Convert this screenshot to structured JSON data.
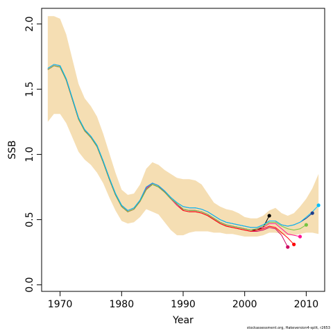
{
  "chart_data": {
    "type": "line",
    "xlabel": "Year",
    "ylabel": "SSB",
    "xlim": [
      1967,
      2013
    ],
    "ylim": [
      -0.05,
      2.12
    ],
    "xticks": [
      1970,
      1980,
      1990,
      2000,
      2010
    ],
    "yticks": [
      0.0,
      0.5,
      1.0,
      1.5,
      2.0
    ],
    "xtick_labels": [
      "1970",
      "1980",
      "1990",
      "2000",
      "2010"
    ],
    "ytick_labels": [
      "0.0",
      "0.5",
      "1.0",
      "1.5",
      "2.0"
    ],
    "grid": false,
    "band": {
      "color": "#F5DEB3",
      "x": [
        1968,
        1969,
        1970,
        1971,
        1972,
        1973,
        1974,
        1975,
        1976,
        1977,
        1978,
        1979,
        1980,
        1981,
        1982,
        1983,
        1984,
        1985,
        1986,
        1987,
        1988,
        1989,
        1990,
        1991,
        1992,
        1993,
        1994,
        1995,
        1996,
        1997,
        1998,
        1999,
        2000,
        2001,
        2002,
        2003,
        2004,
        2005,
        2006,
        2007,
        2008,
        2009,
        2010,
        2011,
        2012
      ],
      "upper": [
        2.06,
        2.06,
        2.04,
        1.92,
        1.73,
        1.54,
        1.43,
        1.37,
        1.29,
        1.16,
        1.01,
        0.86,
        0.73,
        0.69,
        0.7,
        0.77,
        0.89,
        0.94,
        0.92,
        0.88,
        0.85,
        0.82,
        0.81,
        0.81,
        0.8,
        0.77,
        0.7,
        0.63,
        0.6,
        0.58,
        0.57,
        0.55,
        0.52,
        0.51,
        0.51,
        0.53,
        0.57,
        0.59,
        0.55,
        0.53,
        0.55,
        0.6,
        0.66,
        0.74,
        0.85
      ],
      "lower": [
        1.25,
        1.31,
        1.31,
        1.24,
        1.13,
        1.02,
        0.96,
        0.92,
        0.86,
        0.78,
        0.67,
        0.57,
        0.49,
        0.47,
        0.48,
        0.52,
        0.58,
        0.56,
        0.54,
        0.48,
        0.42,
        0.38,
        0.38,
        0.4,
        0.41,
        0.41,
        0.41,
        0.4,
        0.4,
        0.39,
        0.39,
        0.38,
        0.37,
        0.37,
        0.37,
        0.38,
        0.4,
        0.4,
        0.39,
        0.38,
        0.38,
        0.39,
        0.4,
        0.4,
        0.39
      ]
    },
    "series": [
      {
        "color": "#000000",
        "end_point": true,
        "x": [
          1968,
          1969,
          1970,
          1971,
          1972,
          1973,
          1974,
          1975,
          1976,
          1977,
          1978,
          1979,
          1980,
          1981,
          1982,
          1983,
          1984,
          1985,
          1986,
          1987,
          1988,
          1989,
          1990,
          1991,
          1992,
          1993,
          1994,
          1995,
          1996,
          1997,
          1998,
          1999,
          2000,
          2001,
          2002,
          2003,
          2004
        ],
        "values": [
          1.65,
          1.68,
          1.67,
          1.57,
          1.42,
          1.27,
          1.18,
          1.13,
          1.06,
          0.94,
          0.81,
          0.69,
          0.6,
          0.56,
          0.58,
          0.64,
          0.73,
          0.77,
          0.75,
          0.71,
          0.66,
          0.62,
          0.58,
          0.57,
          0.57,
          0.56,
          0.54,
          0.51,
          0.48,
          0.46,
          0.45,
          0.44,
          0.43,
          0.42,
          0.42,
          0.44,
          0.53
        ]
      },
      {
        "color": "#CD0060",
        "end_point": true,
        "x": [
          1968,
          1969,
          1970,
          1971,
          1972,
          1973,
          1974,
          1975,
          1976,
          1977,
          1978,
          1979,
          1980,
          1981,
          1982,
          1983,
          1984,
          1985,
          1986,
          1987,
          1988,
          1989,
          1990,
          1991,
          1992,
          1993,
          1994,
          1995,
          1996,
          1997,
          1998,
          1999,
          2000,
          2001,
          2002,
          2003,
          2004,
          2005,
          2006,
          2007
        ],
        "values": [
          1.65,
          1.68,
          1.67,
          1.57,
          1.42,
          1.27,
          1.18,
          1.13,
          1.06,
          0.94,
          0.81,
          0.69,
          0.6,
          0.56,
          0.58,
          0.64,
          0.74,
          0.78,
          0.76,
          0.71,
          0.66,
          0.61,
          0.57,
          0.56,
          0.56,
          0.55,
          0.53,
          0.5,
          0.47,
          0.45,
          0.44,
          0.43,
          0.42,
          0.41,
          0.41,
          0.42,
          0.44,
          0.43,
          0.38,
          0.29
        ]
      },
      {
        "color": "#FF0000",
        "end_point": true,
        "x": [
          1968,
          1969,
          1970,
          1971,
          1972,
          1973,
          1974,
          1975,
          1976,
          1977,
          1978,
          1979,
          1980,
          1981,
          1982,
          1983,
          1984,
          1985,
          1986,
          1987,
          1988,
          1989,
          1990,
          1991,
          1992,
          1993,
          1994,
          1995,
          1996,
          1997,
          1998,
          1999,
          2000,
          2001,
          2002,
          2003,
          2004,
          2005,
          2006,
          2007,
          2008
        ],
        "values": [
          1.65,
          1.68,
          1.67,
          1.57,
          1.42,
          1.27,
          1.18,
          1.13,
          1.06,
          0.94,
          0.81,
          0.69,
          0.6,
          0.56,
          0.58,
          0.64,
          0.74,
          0.78,
          0.76,
          0.71,
          0.66,
          0.61,
          0.57,
          0.56,
          0.56,
          0.55,
          0.53,
          0.5,
          0.47,
          0.45,
          0.44,
          0.43,
          0.42,
          0.41,
          0.42,
          0.43,
          0.45,
          0.44,
          0.4,
          0.36,
          0.31
        ]
      },
      {
        "color": "#FF1493",
        "end_point": true,
        "x": [
          1968,
          1969,
          1970,
          1971,
          1972,
          1973,
          1974,
          1975,
          1976,
          1977,
          1978,
          1979,
          1980,
          1981,
          1982,
          1983,
          1984,
          1985,
          1986,
          1987,
          1988,
          1989,
          1990,
          1991,
          1992,
          1993,
          1994,
          1995,
          1996,
          1997,
          1998,
          1999,
          2000,
          2001,
          2002,
          2003,
          2004,
          2005,
          2006,
          2007,
          2008,
          2009
        ],
        "values": [
          1.65,
          1.68,
          1.67,
          1.57,
          1.42,
          1.27,
          1.18,
          1.13,
          1.06,
          0.94,
          0.81,
          0.69,
          0.6,
          0.56,
          0.58,
          0.64,
          0.74,
          0.78,
          0.76,
          0.71,
          0.66,
          0.61,
          0.58,
          0.57,
          0.57,
          0.56,
          0.54,
          0.51,
          0.48,
          0.46,
          0.45,
          0.44,
          0.43,
          0.42,
          0.43,
          0.44,
          0.47,
          0.47,
          0.43,
          0.39,
          0.38,
          0.37
        ]
      },
      {
        "color": "#76C442",
        "end_point": true,
        "x": [
          1968,
          1969,
          1970,
          1971,
          1972,
          1973,
          1974,
          1975,
          1976,
          1977,
          1978,
          1979,
          1980,
          1981,
          1982,
          1983,
          1984,
          1985,
          1986,
          1987,
          1988,
          1989,
          1990,
          1991,
          1992,
          1993,
          1994,
          1995,
          1996,
          1997,
          1998,
          1999,
          2000,
          2001,
          2002,
          2003,
          2004,
          2005,
          2006,
          2007,
          2008,
          2009,
          2010
        ],
        "values": [
          1.65,
          1.68,
          1.67,
          1.57,
          1.42,
          1.27,
          1.18,
          1.13,
          1.06,
          0.94,
          0.81,
          0.69,
          0.6,
          0.56,
          0.58,
          0.64,
          0.73,
          0.77,
          0.75,
          0.71,
          0.66,
          0.62,
          0.58,
          0.57,
          0.57,
          0.56,
          0.54,
          0.51,
          0.48,
          0.46,
          0.45,
          0.44,
          0.43,
          0.42,
          0.43,
          0.45,
          0.48,
          0.48,
          0.45,
          0.43,
          0.42,
          0.43,
          0.46
        ]
      },
      {
        "color": "#1E3C8C",
        "end_point": true,
        "x": [
          1968,
          1969,
          1970,
          1971,
          1972,
          1973,
          1974,
          1975,
          1976,
          1977,
          1978,
          1979,
          1980,
          1981,
          1982,
          1983,
          1984,
          1985,
          1986,
          1987,
          1988,
          1989,
          1990,
          1991,
          1992,
          1993,
          1994,
          1995,
          1996,
          1997,
          1998,
          1999,
          2000,
          2001,
          2002,
          2003,
          2004,
          2005,
          2006,
          2007,
          2008,
          2009,
          2010,
          2011
        ],
        "values": [
          1.66,
          1.69,
          1.68,
          1.58,
          1.43,
          1.28,
          1.19,
          1.14,
          1.07,
          0.95,
          0.82,
          0.7,
          0.61,
          0.57,
          0.59,
          0.65,
          0.75,
          0.78,
          0.76,
          0.72,
          0.67,
          0.63,
          0.6,
          0.59,
          0.59,
          0.58,
          0.56,
          0.53,
          0.5,
          0.48,
          0.47,
          0.46,
          0.45,
          0.44,
          0.44,
          0.46,
          0.49,
          0.49,
          0.46,
          0.45,
          0.46,
          0.48,
          0.51,
          0.55
        ]
      },
      {
        "color": "#00BFFF",
        "end_point": true,
        "x": [
          1968,
          1969,
          1970,
          1971,
          1972,
          1973,
          1974,
          1975,
          1976,
          1977,
          1978,
          1979,
          1980,
          1981,
          1982,
          1983,
          1984,
          1985,
          1986,
          1987,
          1988,
          1989,
          1990,
          1991,
          1992,
          1993,
          1994,
          1995,
          1996,
          1997,
          1998,
          1999,
          2000,
          2001,
          2002,
          2003,
          2004,
          2005,
          2006,
          2007,
          2008,
          2009,
          2010,
          2011,
          2012
        ],
        "values": [
          1.66,
          1.69,
          1.68,
          1.58,
          1.43,
          1.28,
          1.19,
          1.14,
          1.07,
          0.95,
          0.82,
          0.7,
          0.61,
          0.57,
          0.59,
          0.65,
          0.75,
          0.78,
          0.76,
          0.72,
          0.67,
          0.63,
          0.6,
          0.59,
          0.59,
          0.58,
          0.56,
          0.53,
          0.5,
          0.48,
          0.47,
          0.46,
          0.45,
          0.44,
          0.44,
          0.46,
          0.49,
          0.49,
          0.46,
          0.45,
          0.46,
          0.48,
          0.52,
          0.56,
          0.61
        ]
      }
    ],
    "footnote": "stockassessment.org, Hakeversion4-split, r2653"
  }
}
